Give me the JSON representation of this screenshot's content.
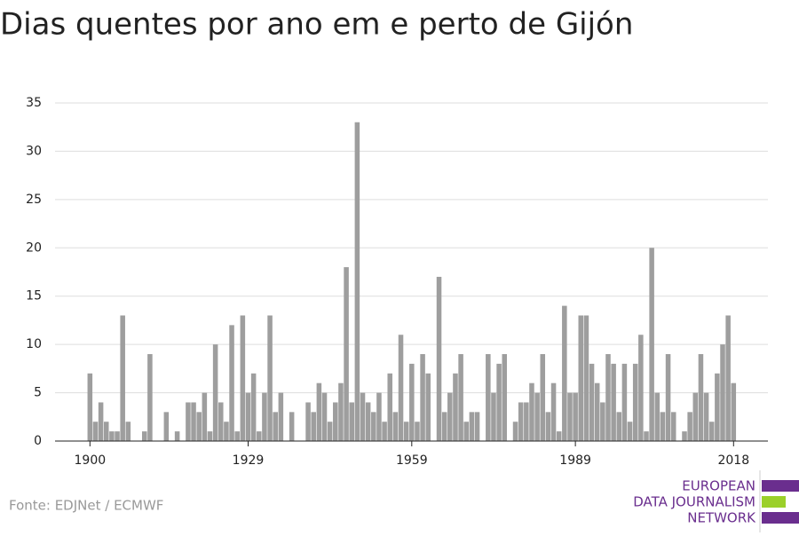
{
  "chart_data": {
    "type": "bar",
    "title": "Dias quentes por ano em e perto de Gijón",
    "source": "Fonte: EDJNet / ECMWF",
    "logo": [
      "EUROPEAN",
      "DATA JOURNALISM",
      "NETWORK"
    ],
    "color": "#9e9e9e",
    "x": [
      1900,
      1901,
      1902,
      1903,
      1904,
      1905,
      1906,
      1907,
      1908,
      1909,
      1910,
      1911,
      1912,
      1913,
      1914,
      1915,
      1916,
      1917,
      1918,
      1919,
      1920,
      1921,
      1922,
      1923,
      1924,
      1925,
      1926,
      1927,
      1928,
      1929,
      1930,
      1931,
      1932,
      1933,
      1934,
      1935,
      1936,
      1937,
      1938,
      1939,
      1940,
      1941,
      1942,
      1943,
      1944,
      1945,
      1946,
      1947,
      1948,
      1949,
      1950,
      1951,
      1952,
      1953,
      1954,
      1955,
      1956,
      1957,
      1958,
      1959,
      1960,
      1961,
      1962,
      1963,
      1964,
      1965,
      1966,
      1967,
      1968,
      1969,
      1970,
      1971,
      1972,
      1973,
      1974,
      1975,
      1976,
      1977,
      1978,
      1979,
      1980,
      1981,
      1982,
      1983,
      1984,
      1985,
      1986,
      1987,
      1988,
      1989,
      1990,
      1991,
      1992,
      1993,
      1994,
      1995,
      1996,
      1997,
      1998,
      1999,
      2000,
      2001,
      2002,
      2003,
      2004,
      2005,
      2006,
      2007,
      2008,
      2009,
      2010,
      2011,
      2012,
      2013,
      2014,
      2015,
      2016,
      2017,
      2018
    ],
    "values": [
      7,
      2,
      4,
      2,
      1,
      1,
      13,
      2,
      0,
      0,
      1,
      9,
      0,
      0,
      3,
      0,
      1,
      0,
      4,
      4,
      3,
      5,
      1,
      10,
      4,
      2,
      12,
      1,
      13,
      5,
      7,
      1,
      5,
      13,
      3,
      5,
      0,
      3,
      0,
      0,
      4,
      3,
      6,
      5,
      2,
      4,
      6,
      18,
      4,
      33,
      5,
      4,
      3,
      5,
      2,
      7,
      3,
      11,
      2,
      8,
      2,
      9,
      7,
      0,
      17,
      3,
      5,
      7,
      9,
      2,
      3,
      3,
      0,
      9,
      5,
      8,
      9,
      0,
      2,
      4,
      4,
      6,
      5,
      9,
      3,
      6,
      1,
      14,
      5,
      5,
      13,
      13,
      8,
      6,
      4,
      9,
      8,
      3,
      8,
      2,
      8,
      11,
      1,
      20,
      5,
      3,
      9,
      3,
      0,
      1,
      3,
      5,
      9,
      5,
      2,
      7,
      10,
      13,
      6
    ],
    "xlim": [
      1893.6,
      2024.3
    ],
    "xticks": [
      1900,
      1929,
      1959,
      1989,
      2018
    ],
    "ylim": [
      0,
      35
    ],
    "yticks": [
      0,
      5,
      10,
      15,
      20,
      25,
      30,
      35
    ],
    "grid": true
  }
}
